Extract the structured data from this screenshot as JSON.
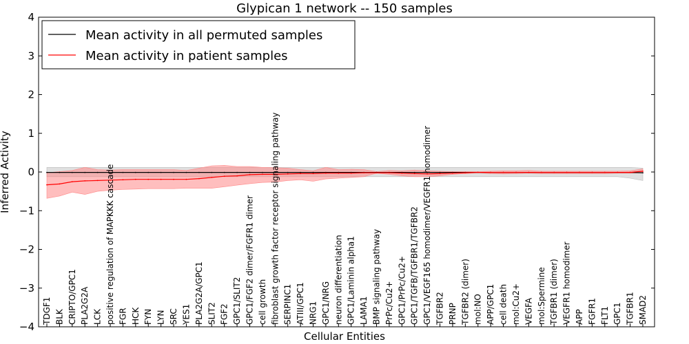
{
  "chart_data": {
    "type": "line",
    "title": "Glypican 1 network -- 150 samples",
    "xlabel": "Cellular Entities",
    "ylabel": "Inferred Activity",
    "ylim": [
      -4,
      4
    ],
    "yticks": [
      -4,
      -3,
      -2,
      -1,
      0,
      1,
      2,
      3,
      4
    ],
    "ytick_labels": [
      "−4",
      "−3",
      "−2",
      "−1",
      "0",
      "1",
      "2",
      "3",
      "4"
    ],
    "legend_position": "top-left",
    "categories": [
      "TDGF1",
      "BLK",
      "CRIPTO/GPC1",
      "PLA2G2A",
      "LCK",
      "positive regulation of MAPKKK cascade",
      "FGR",
      "HCK",
      "FYN",
      "LYN",
      "SRC",
      "YES1",
      "PLA2G2A/GPC1",
      "SLIT2",
      "FGF2",
      "GPC1/SLIT2",
      "GPC1/FGF2 dimer/FGFR1 dimer",
      "cell growth",
      "fibroblast growth factor receptor signaling pathway",
      "SERPINC1",
      "ATIII/GPC1",
      "NRG1",
      "GPC1/NRG",
      "neuron differentiation",
      "GPC1/Laminin alpha1",
      "LAMA1",
      "BMP signaling pathway",
      "PrPc/Cu2+",
      "GPC1/PrPc/Cu2+",
      "GPC1/TGFB/TGFBR1/TGFBR2",
      "GPC1/VEGF165 homodimer/VEGFR1 homodimer",
      "TGFBR2",
      "PRNP",
      "TGFBR2 (dimer)",
      "mol:NO",
      "APP/GPC1",
      "cell death",
      "mol:Cu2+",
      "VEGFA",
      "mol:Spermine",
      "TGFBR1 (dimer)",
      "VEGFR1 homodimer",
      "APP",
      "FGFR1",
      "FLT1",
      "GPC1",
      "TGFBR1",
      "SMAD2"
    ],
    "series": [
      {
        "name": "Mean activity in all permuted samples",
        "color": "#000000",
        "values": [
          -0.01,
          -0.01,
          -0.01,
          -0.01,
          -0.01,
          -0.01,
          -0.01,
          -0.01,
          -0.01,
          -0.01,
          -0.01,
          -0.01,
          -0.01,
          -0.01,
          -0.01,
          -0.01,
          -0.01,
          -0.01,
          -0.01,
          -0.01,
          -0.01,
          -0.01,
          -0.01,
          -0.01,
          -0.01,
          -0.01,
          -0.01,
          -0.01,
          -0.01,
          -0.01,
          -0.01,
          -0.01,
          -0.01,
          -0.01,
          -0.01,
          -0.01,
          -0.01,
          -0.01,
          -0.01,
          -0.01,
          -0.01,
          -0.01,
          -0.01,
          -0.01,
          -0.01,
          -0.01,
          -0.01,
          -0.02
        ],
        "band_lower": [
          -0.12,
          -0.12,
          -0.12,
          -0.12,
          -0.12,
          -0.12,
          -0.12,
          -0.12,
          -0.12,
          -0.12,
          -0.12,
          -0.12,
          -0.12,
          -0.12,
          -0.12,
          -0.12,
          -0.12,
          -0.12,
          -0.12,
          -0.12,
          -0.12,
          -0.12,
          -0.12,
          -0.12,
          -0.12,
          -0.12,
          -0.12,
          -0.12,
          -0.12,
          -0.12,
          -0.12,
          -0.12,
          -0.12,
          -0.12,
          -0.12,
          -0.12,
          -0.12,
          -0.12,
          -0.12,
          -0.12,
          -0.12,
          -0.12,
          -0.12,
          -0.12,
          -0.12,
          -0.12,
          -0.16,
          -0.22
        ],
        "band_upper": [
          0.12,
          0.12,
          0.12,
          0.12,
          0.12,
          0.12,
          0.12,
          0.12,
          0.12,
          0.12,
          0.12,
          0.12,
          0.12,
          0.12,
          0.12,
          0.12,
          0.12,
          0.12,
          0.12,
          0.12,
          0.12,
          0.12,
          0.12,
          0.12,
          0.12,
          0.12,
          0.12,
          0.12,
          0.12,
          0.12,
          0.12,
          0.12,
          0.12,
          0.12,
          0.12,
          0.12,
          0.12,
          0.12,
          0.12,
          0.12,
          0.12,
          0.12,
          0.12,
          0.12,
          0.12,
          0.12,
          0.12,
          0.1
        ],
        "band_color": "#bbbbbb"
      },
      {
        "name": "Mean activity in patient samples",
        "color": "#ff0000",
        "values": [
          -0.33,
          -0.31,
          -0.25,
          -0.23,
          -0.22,
          -0.21,
          -0.2,
          -0.19,
          -0.19,
          -0.19,
          -0.19,
          -0.19,
          -0.17,
          -0.14,
          -0.11,
          -0.1,
          -0.07,
          -0.06,
          -0.06,
          -0.05,
          -0.04,
          -0.04,
          -0.03,
          -0.03,
          -0.03,
          -0.02,
          -0.02,
          -0.02,
          -0.03,
          -0.04,
          -0.05,
          -0.04,
          -0.03,
          -0.02,
          -0.01,
          -0.01,
          -0.01,
          -0.01,
          -0.01,
          -0.01,
          -0.01,
          -0.01,
          -0.01,
          -0.01,
          -0.01,
          -0.01,
          -0.01,
          0.02
        ],
        "band_lower": [
          -0.68,
          -0.62,
          -0.52,
          -0.58,
          -0.5,
          -0.47,
          -0.45,
          -0.44,
          -0.43,
          -0.43,
          -0.43,
          -0.42,
          -0.42,
          -0.42,
          -0.38,
          -0.34,
          -0.3,
          -0.27,
          -0.26,
          -0.22,
          -0.2,
          -0.24,
          -0.18,
          -0.16,
          -0.14,
          -0.12,
          -0.03,
          -0.06,
          -0.1,
          -0.12,
          -0.12,
          -0.1,
          -0.06,
          -0.04,
          -0.02,
          -0.04,
          -0.05,
          -0.04,
          -0.03,
          -0.04,
          -0.04,
          -0.04,
          -0.04,
          -0.04,
          -0.04,
          -0.03,
          -0.03,
          -0.02
        ],
        "band_upper": [
          -0.02,
          0.01,
          0.04,
          0.12,
          0.06,
          0.05,
          0.06,
          0.06,
          0.06,
          0.06,
          0.06,
          0.04,
          0.1,
          0.16,
          0.17,
          0.14,
          0.14,
          0.12,
          0.11,
          0.1,
          0.06,
          0.03,
          0.12,
          0.06,
          0.07,
          0.06,
          0.01,
          0.04,
          0.03,
          0.05,
          0.03,
          0.02,
          0.01,
          0.01,
          0.01,
          0.02,
          0.03,
          0.03,
          0.04,
          0.02,
          0.02,
          0.02,
          0.02,
          0.02,
          0.02,
          0.02,
          0.03,
          0.08
        ],
        "band_color": "#ff8888"
      }
    ]
  }
}
